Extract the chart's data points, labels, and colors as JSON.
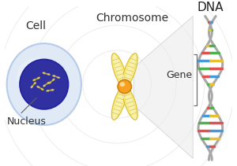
{
  "bg_color": "#ffffff",
  "labels": {
    "cell": "Cell",
    "nucleus": "Nucleus",
    "chromosome": "Chromosome",
    "gene": "Gene",
    "dna": "DNA"
  },
  "cell_color": "#dde8f5",
  "cell_edge_color": "#b0c8e8",
  "nucleus_color": "#3030a0",
  "nucleus_edge_color": "#2020a0",
  "chrom_fill": "#f5e87a",
  "chrom_edge": "#d4b820",
  "chrom_inner": "#faf5c0",
  "centromere_color": "#f5a020",
  "centromere_edge": "#d08010",
  "watermark_color": "#e8e8e8",
  "font_size": 9,
  "dna_backbone": "#b0b0b0",
  "gene_bracket": "#888888",
  "expand_line": "#c0c0c0",
  "expand_fill": "#e8e8e8"
}
